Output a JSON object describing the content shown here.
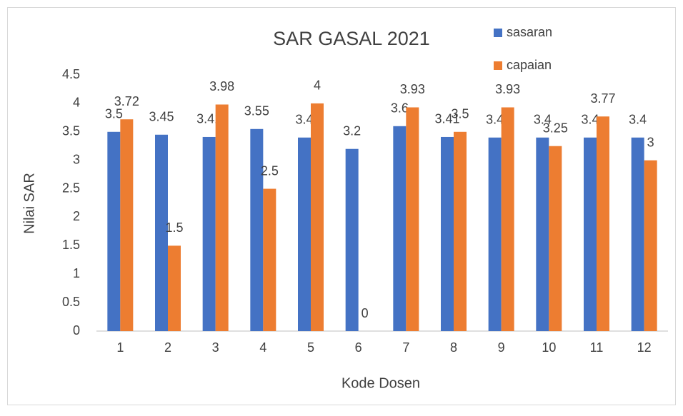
{
  "chart_data": {
    "type": "bar",
    "title": "SAR  GASAL 2021",
    "x_label": "Kode Dosen",
    "y_label": "Nilai SAR",
    "categories": [
      "1",
      "2",
      "3",
      "4",
      "5",
      "6",
      "7",
      "8",
      "9",
      "10",
      "11",
      "12"
    ],
    "series": [
      {
        "name": "sasaran",
        "color": "#4472c4",
        "values": [
          3.5,
          3.45,
          3.41,
          3.55,
          3.4,
          3.2,
          3.6,
          3.41,
          3.4,
          3.4,
          3.4,
          3.4
        ]
      },
      {
        "name": "capaian",
        "color": "#ed7d31",
        "values": [
          3.72,
          1.5,
          3.98,
          2.5,
          4,
          0,
          3.93,
          3.5,
          3.93,
          3.25,
          3.77,
          3
        ]
      }
    ],
    "ylim": [
      0,
      4.5
    ],
    "yticks": [
      0,
      0.5,
      1,
      1.5,
      2,
      2.5,
      3,
      3.5,
      4,
      4.5
    ],
    "grid": false,
    "legend": "top-right"
  }
}
